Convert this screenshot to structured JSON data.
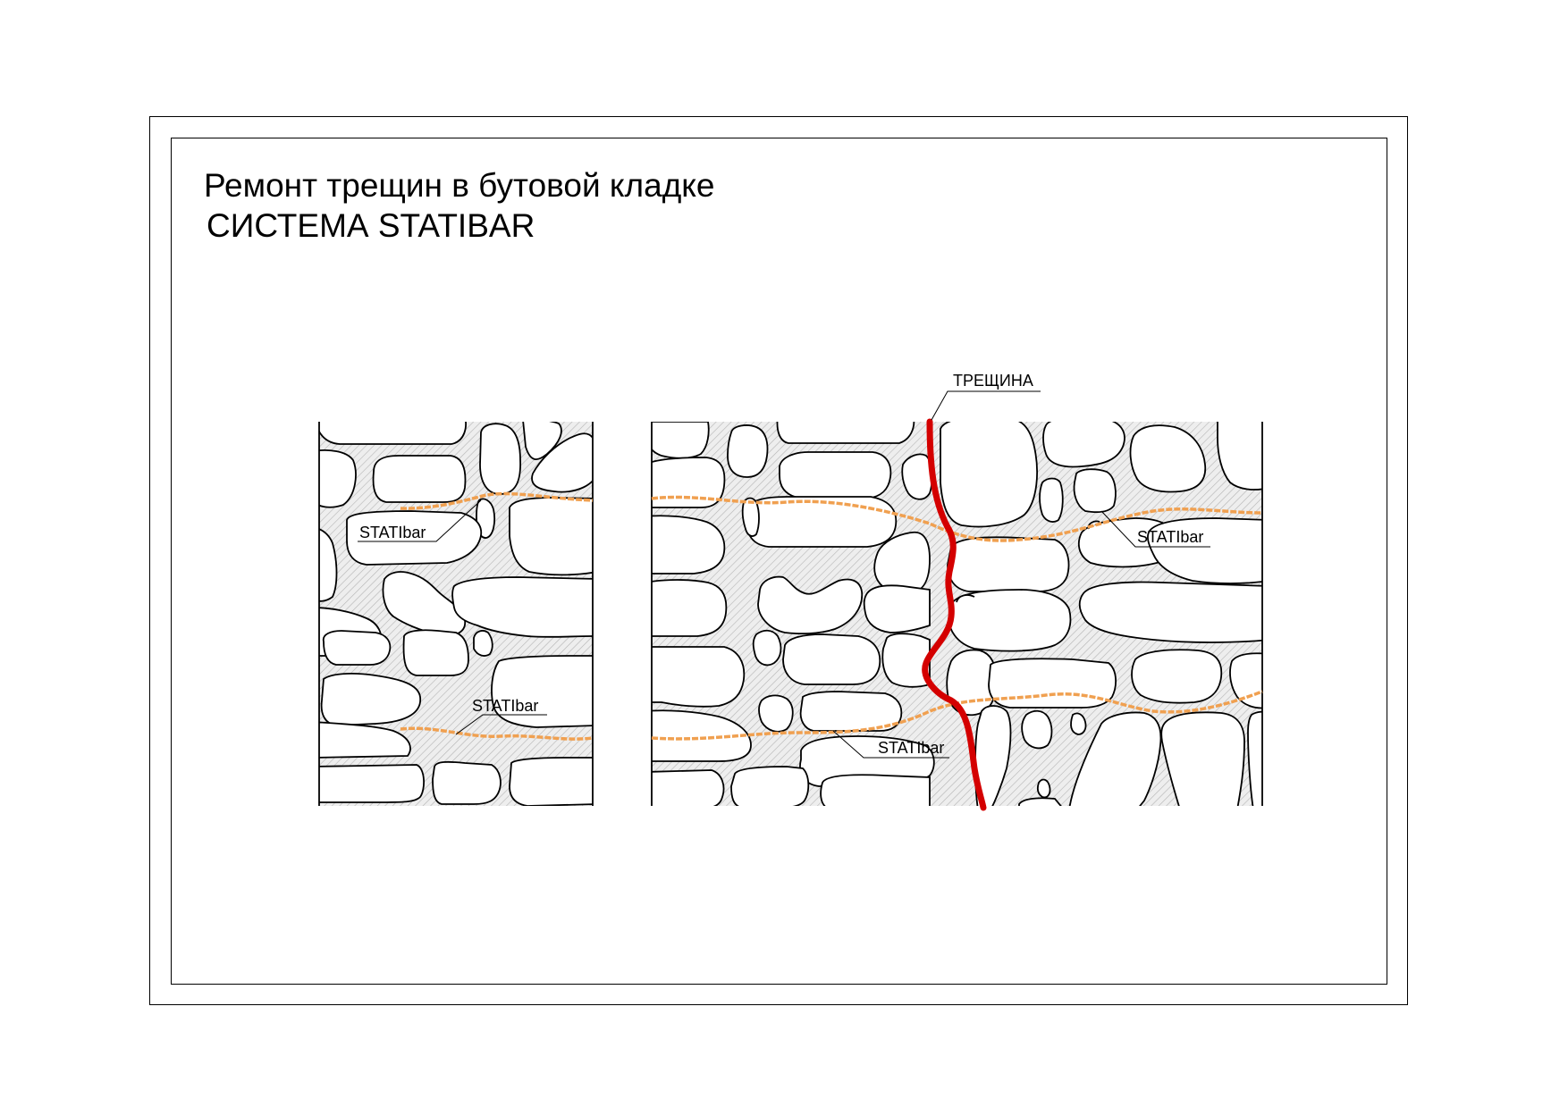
{
  "title": "Ремонт трещин в бутовой кладке",
  "subtitle": "СИСТЕМА STATIBAR",
  "labels": {
    "crack": "ТРЕЩИНА",
    "bar_left_upper": "STATIbar",
    "bar_left_lower": "STATIbar",
    "bar_right_upper": "STATIbar",
    "bar_right_lower": "STATIbar"
  },
  "colors": {
    "crack": "#d40000",
    "statibar": "#f0a050",
    "mortar_hatch": "#bdbdbd",
    "outline": "#000000"
  }
}
